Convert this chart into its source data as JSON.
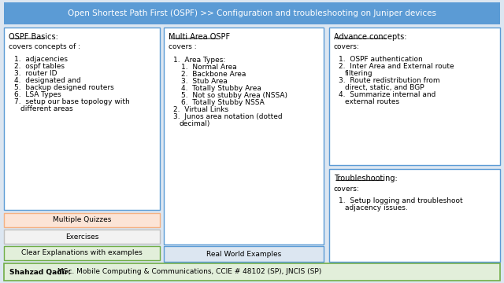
{
  "title": "Open Shortest Path First (OSPF) >> Configuration and troubleshooting on Juniper devices",
  "title_bg": "#5b9bd5",
  "title_color": "white",
  "main_bg": "#dce6f1",
  "panel_bg": "white",
  "panel_border": "#5b9bd5",
  "footer_bg": "#e2efda",
  "footer_border": "#70ad47",
  "footer_text": "Shahzad Qadir:",
  "footer_rest": " MSc. Mobile Computing & Communications, CCIE # 48102 (SP), JNCIS (SP)",
  "col1_title": "OSPF Basics:",
  "col1_intro": "covers concepts of :",
  "col1_items": [
    "adjacencies",
    "ospf tables",
    "router ID",
    "designated and",
    "backup designed routers",
    "LSA Types",
    "setup our base topology with\ndifferent areas"
  ],
  "btn1_text": "Multiple Quizzes",
  "btn1_bg": "#fce4d6",
  "btn1_border": "#f4b183",
  "btn2_text": "Exercises",
  "btn2_bg": "#f2f2f2",
  "btn2_border": "#bfbfbf",
  "btn3_text": "Clear Explanations with examples",
  "btn3_bg": "#e2efda",
  "btn3_border": "#70ad47",
  "col2_title": "Multi Area OSPF",
  "col2_intro": "covers :",
  "col2_items": [
    [
      "Area Types:",
      [
        "Normal Area",
        "Backbone Area",
        "Stub Area",
        "Totally Stubby Area",
        "Not so stubby Area (NSSA)",
        "Totally Stubby NSSA"
      ]
    ],
    [
      "Virtual Links",
      []
    ],
    [
      "Junos area notation (dotted\ndecimal)",
      []
    ]
  ],
  "btn4_text": "Real World Examples",
  "btn4_bg": "#dce6f1",
  "btn4_border": "#5b9bd5",
  "col3_title": "Advance concepts:",
  "col3_intro": "covers:",
  "col3_items": [
    "OSPF authentication",
    "Inter Area and External route\nfiltering",
    "Route redistribution from\ndirect, static, and BGP",
    "Summarize internal and\nexternal routes"
  ],
  "col3b_title": "Troubleshooting:",
  "col3b_intro": "covers:",
  "col3b_items": [
    "Setup logging and troubleshoot\nadjacency issues."
  ]
}
